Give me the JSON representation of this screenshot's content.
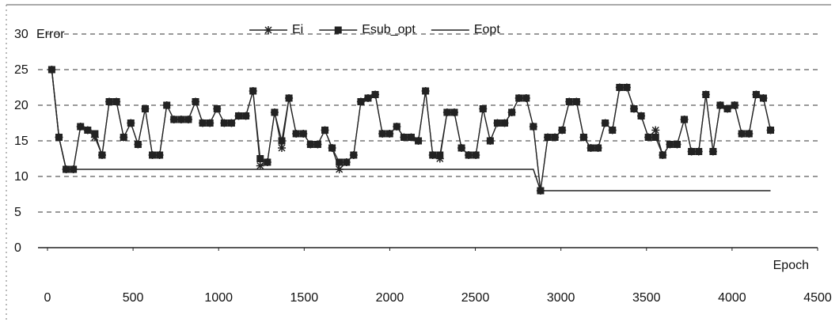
{
  "chart_data": {
    "type": "line",
    "y_label": "Error",
    "x_label": "Epoch",
    "xlim": [
      0,
      4500
    ],
    "xticks": [
      0,
      500,
      1000,
      1500,
      2000,
      2500,
      3000,
      3500,
      4000,
      4500
    ],
    "ylim": [
      0,
      30
    ],
    "yticks": [
      0,
      5,
      10,
      15,
      20,
      25,
      30
    ],
    "grid": true,
    "legend": "top",
    "x": [
      25,
      67,
      109,
      151,
      193,
      235,
      277,
      319,
      361,
      403,
      445,
      487,
      529,
      571,
      613,
      655,
      697,
      739,
      781,
      823,
      865,
      907,
      949,
      991,
      1033,
      1075,
      1117,
      1159,
      1201,
      1243,
      1285,
      1327,
      1369,
      1411,
      1453,
      1495,
      1537,
      1579,
      1621,
      1663,
      1705,
      1747,
      1789,
      1831,
      1873,
      1915,
      1957,
      1999,
      2041,
      2083,
      2125,
      2167,
      2209,
      2251,
      2293,
      2335,
      2377,
      2419,
      2461,
      2503,
      2545,
      2587,
      2629,
      2671,
      2713,
      2755,
      2797,
      2839,
      2881,
      2923,
      2965,
      3007,
      3049,
      3091,
      3133,
      3175,
      3217,
      3259,
      3301,
      3343,
      3385,
      3427,
      3469,
      3511,
      3553,
      3595,
      3637,
      3679,
      3721,
      3763,
      3805,
      3847,
      3889,
      3931,
      3973,
      4015,
      4057,
      4099,
      4141,
      4183,
      4225
    ],
    "series": [
      {
        "name": "Ei",
        "color": "#222222",
        "marker": "asterisk",
        "values": [
          25,
          15.5,
          11,
          11,
          17,
          16.5,
          15.5,
          13,
          20.5,
          20.5,
          15.5,
          17.5,
          14.5,
          19.5,
          13,
          13,
          20,
          18,
          18,
          18,
          20.5,
          17.5,
          17.5,
          19.5,
          17.5,
          17.5,
          18.5,
          18.5,
          22,
          11.5,
          12,
          19,
          14,
          21,
          16,
          16,
          14.5,
          14.5,
          16.5,
          14,
          11,
          12,
          13,
          20.5,
          21,
          21.5,
          16,
          16,
          17,
          15.5,
          15.5,
          15,
          22,
          13,
          12.5,
          19,
          19,
          14,
          13,
          13,
          19.5,
          15,
          17.5,
          17.5,
          19,
          21,
          21,
          17,
          8,
          15.5,
          15.5,
          16.5,
          20.5,
          20.5,
          15.5,
          14,
          14,
          17.5,
          16.5,
          22.5,
          22.5,
          19.5,
          18.5,
          15.5,
          16.5,
          13,
          14.5,
          14.5,
          18,
          13.5,
          13.5,
          21.5,
          13.5,
          20,
          19.5,
          20,
          16,
          16,
          21.5,
          21,
          16.5
        ]
      },
      {
        "name": "Esub_opt",
        "color": "#222222",
        "marker": "square",
        "values": [
          25,
          15.5,
          11,
          11,
          17,
          16.5,
          16,
          13,
          20.5,
          20.5,
          15.5,
          17.5,
          14.5,
          19.5,
          13,
          13,
          20,
          18,
          18,
          18,
          20.5,
          17.5,
          17.5,
          19.5,
          17.5,
          17.5,
          18.5,
          18.5,
          22,
          12.5,
          12,
          19,
          15,
          21,
          16,
          16,
          14.5,
          14.5,
          16.5,
          14,
          12,
          12,
          13,
          20.5,
          21,
          21.5,
          16,
          16,
          17,
          15.5,
          15.5,
          15,
          22,
          13,
          13,
          19,
          19,
          14,
          13,
          13,
          19.5,
          15,
          17.5,
          17.5,
          19,
          21,
          21,
          17,
          8,
          15.5,
          15.5,
          16.5,
          20.5,
          20.5,
          15.5,
          14,
          14,
          17.5,
          16.5,
          22.5,
          22.5,
          19.5,
          18.5,
          15.5,
          15.5,
          13,
          14.5,
          14.5,
          18,
          13.5,
          13.5,
          21.5,
          13.5,
          20,
          19.5,
          20,
          16,
          16,
          21.5,
          21,
          16.5
        ]
      },
      {
        "name": "Eopt",
        "color": "#222222",
        "marker": "none",
        "values": [
          25,
          15.5,
          11,
          11,
          11,
          11,
          11,
          11,
          11,
          11,
          11,
          11,
          11,
          11,
          11,
          11,
          11,
          11,
          11,
          11,
          11,
          11,
          11,
          11,
          11,
          11,
          11,
          11,
          11,
          11,
          11,
          11,
          11,
          11,
          11,
          11,
          11,
          11,
          11,
          11,
          11,
          11,
          11,
          11,
          11,
          11,
          11,
          11,
          11,
          11,
          11,
          11,
          11,
          11,
          11,
          11,
          11,
          11,
          11,
          11,
          11,
          11,
          11,
          11,
          11,
          11,
          11,
          11,
          8,
          8,
          8,
          8,
          8,
          8,
          8,
          8,
          8,
          8,
          8,
          8,
          8,
          8,
          8,
          8,
          8,
          8,
          8,
          8,
          8,
          8,
          8,
          8,
          8,
          8,
          8,
          8,
          8,
          8,
          8,
          8,
          8
        ]
      }
    ]
  }
}
